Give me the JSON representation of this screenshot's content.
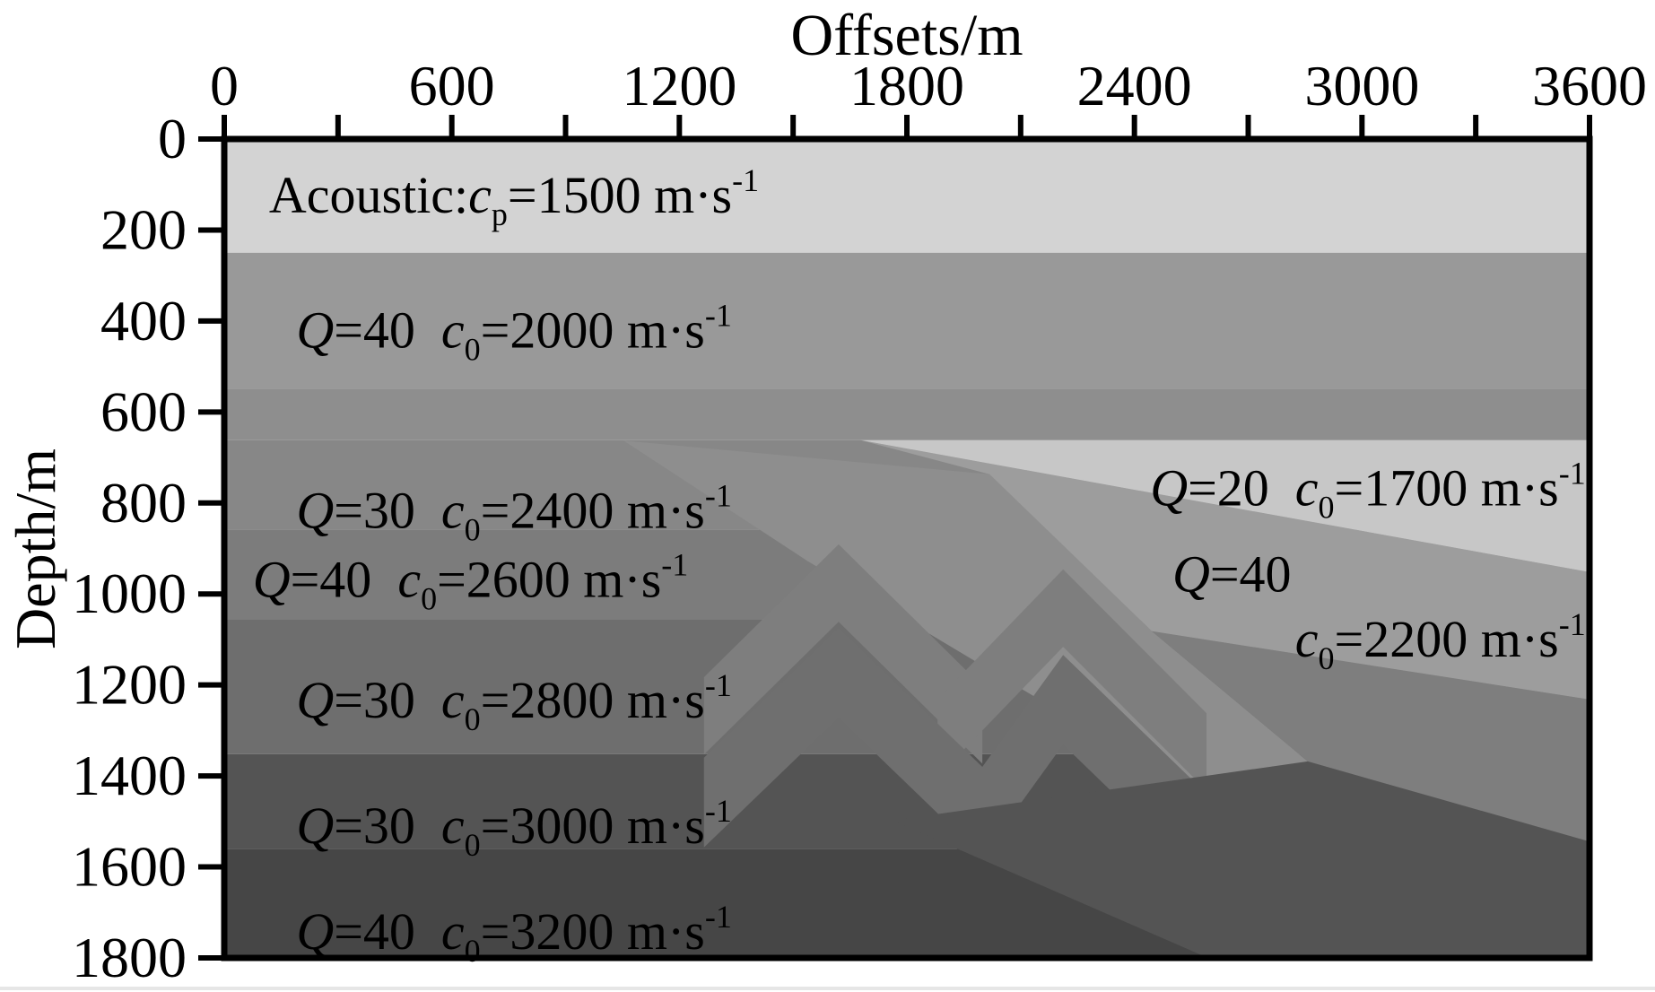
{
  "figure": {
    "title": "Offsets/m",
    "y_axis_title": "Depth/m"
  },
  "chart_data": {
    "type": "area",
    "title": "Offsets/m",
    "xlabel": "Offsets/m",
    "ylabel": "Depth/m",
    "x_range_m": [
      0,
      3600
    ],
    "depth_range_m": [
      0,
      1800
    ],
    "grid": false,
    "legend": "none",
    "x_major_ticks": [
      0,
      600,
      1200,
      1800,
      2400,
      3000,
      3600
    ],
    "x_minor_ticks": [
      300,
      900,
      1500,
      2100,
      2700,
      3300
    ],
    "y_ticks": [
      0,
      200,
      400,
      600,
      800,
      1000,
      1200,
      1400,
      1600,
      1800
    ],
    "layers_summary": [
      {
        "name": "Acoustic",
        "Q": null,
        "velocity": "cp=1500 m/s",
        "approx_depth_top_m": 0,
        "color": "#d3d3d3"
      },
      {
        "name": "Q=40 c0=2000",
        "Q": 40,
        "velocity": "c0=2000 m/s",
        "approx_depth_top_m": 250,
        "color": "#999999"
      },
      {
        "name": "transition band",
        "Q": null,
        "velocity": null,
        "approx_depth_top_m": 550,
        "color": "#8e8e8e"
      },
      {
        "name": "Q=30 c0=2400",
        "Q": 30,
        "velocity": "c0=2400 m/s",
        "approx_depth_top_m": 662,
        "color": "#878787"
      },
      {
        "name": "Q=40 c0=2600",
        "Q": 40,
        "velocity": "c0=2600 m/s",
        "approx_depth_top_m": 858,
        "color": "#7c7c7c"
      },
      {
        "name": "Q=30 c0=2800",
        "Q": 30,
        "velocity": "c0=2800 m/s",
        "approx_depth_top_m": 1055,
        "color": "#6e6e6e"
      },
      {
        "name": "Q=30 c0=3000",
        "Q": 30,
        "velocity": "c0=3000 m/s",
        "approx_depth_top_m": 1352,
        "color": "#545454"
      },
      {
        "name": "Q=40 c0=3200",
        "Q": 40,
        "velocity": "c0=3200 m/s",
        "approx_depth_top_m": 1560,
        "color": "#464646"
      },
      {
        "name": "Q=20 c0=1700 wedge",
        "Q": 20,
        "velocity": "c0=1700 m/s",
        "approx_depth_top_m": 662,
        "color": "#c7c7c7"
      },
      {
        "name": "Q=40 c0=2200 region",
        "Q": 40,
        "velocity": "c0=2200 m/s",
        "approx_depth_top_m": 700,
        "color": "#9d9d9d"
      }
    ],
    "regions": [
      {
        "id": "layer-acoustic",
        "color": "#d3d3d3",
        "depth": [
          0,
          250
        ]
      },
      {
        "id": "layer-2000",
        "color": "#999999",
        "depth": [
          250,
          550
        ]
      },
      {
        "id": "transition-band",
        "color": "#8e8e8e",
        "depth": [
          550,
          662
        ]
      },
      {
        "id": "layer-2400",
        "color": "#878787",
        "depth": [
          662,
          858
        ]
      },
      {
        "id": "layer-2600",
        "color": "#7c7c7c",
        "depth": [
          858,
          1055
        ]
      },
      {
        "id": "layer-2800",
        "color": "#6e6e6e",
        "depth": [
          1055,
          1352
        ]
      },
      {
        "id": "layer-3000",
        "color": "#545454",
        "depth": [
          1352,
          1560
        ]
      },
      {
        "id": "layer-3200",
        "color": "#464646",
        "depth": [
          1560,
          1800
        ]
      },
      {
        "id": "thrust-sheet-upper",
        "color": "#8e8e8e",
        "poly": [
          [
            1053,
            663
          ],
          [
            2018,
            737
          ],
          [
            2446,
            1082
          ],
          [
            2857,
            1368
          ],
          [
            2720,
            1518
          ],
          [
            2129,
            1222
          ],
          [
            1537,
            927
          ]
        ]
      },
      {
        "id": "thrust-chevron-1",
        "color": "#7e7e7e",
        "poly": [
          [
            1265,
            1183
          ],
          [
            1620,
            891
          ],
          [
            1999,
            1203
          ],
          [
            1999,
            1373
          ],
          [
            1620,
            1061
          ],
          [
            1265,
            1353
          ]
        ]
      },
      {
        "id": "thrust-chevron-2",
        "color": "#7e7e7e",
        "poly": [
          [
            1881,
            1232
          ],
          [
            2212,
            946
          ],
          [
            2590,
            1262
          ],
          [
            2590,
            1432
          ],
          [
            2212,
            1116
          ],
          [
            1881,
            1402
          ]
        ]
      },
      {
        "id": "thrust-chevron-lower",
        "color": "#6f6f6f",
        "poly": [
          [
            1265,
            1360
          ],
          [
            1620,
            1074
          ],
          [
            1999,
            1380
          ],
          [
            2212,
            1134
          ],
          [
            2590,
            1439
          ],
          [
            2590,
            1636
          ],
          [
            2212,
            1331
          ],
          [
            1999,
            1577
          ],
          [
            1620,
            1272
          ],
          [
            1265,
            1557
          ]
        ]
      },
      {
        "id": "deep-right-3000",
        "color": "#545454",
        "poly": [
          [
            1762,
            1498
          ],
          [
            2857,
            1368
          ],
          [
            3600,
            1544
          ],
          [
            3600,
            1800
          ],
          [
            2594,
            1800
          ]
        ]
      },
      {
        "id": "mid-right-band",
        "color": "#7e7e7e",
        "poly": [
          [
            2446,
            1082
          ],
          [
            3600,
            1232
          ],
          [
            3600,
            1544
          ],
          [
            2857,
            1368
          ]
        ]
      },
      {
        "id": "region-2200",
        "color": "#9d9d9d",
        "poly": [
          [
            1678,
            662
          ],
          [
            3600,
            952
          ],
          [
            3600,
            1232
          ],
          [
            2446,
            1082
          ],
          [
            2018,
            737
          ]
        ]
      },
      {
        "id": "wedge-1700",
        "color": "#c7c7c7",
        "poly": [
          [
            1678,
            662
          ],
          [
            3600,
            662
          ],
          [
            3600,
            952
          ]
        ]
      }
    ],
    "labels": [
      {
        "id": "label-acoustic",
        "o": 118,
        "d": 162,
        "anchor": "start",
        "parts": [
          {
            "t": "Acoustic:"
          },
          {
            "t": "c",
            "i": true
          },
          {
            "t": "p",
            "sub": true
          },
          {
            "t": "=1500 m·s"
          },
          {
            "t": "-1",
            "sup": true
          }
        ]
      },
      {
        "id": "label-2000",
        "o": 190,
        "d": 458,
        "anchor": "start",
        "parts": [
          {
            "t": "Q",
            "i": true
          },
          {
            "t": "=40  "
          },
          {
            "t": "c",
            "i": true
          },
          {
            "t": "0",
            "sub": true
          },
          {
            "t": "=2000 m·s"
          },
          {
            "t": "-1",
            "sup": true
          }
        ]
      },
      {
        "id": "label-2400",
        "o": 190,
        "d": 855,
        "anchor": "start",
        "parts": [
          {
            "t": "Q",
            "i": true
          },
          {
            "t": "=30  "
          },
          {
            "t": "c",
            "i": true
          },
          {
            "t": "0",
            "sub": true
          },
          {
            "t": "=2400 m·s"
          },
          {
            "t": "-1",
            "sup": true
          }
        ]
      },
      {
        "id": "label-2600",
        "o": 75,
        "d": 1006,
        "anchor": "start",
        "parts": [
          {
            "t": "Q",
            "i": true
          },
          {
            "t": "=40  "
          },
          {
            "t": "c",
            "i": true
          },
          {
            "t": "0",
            "sub": true
          },
          {
            "t": "=2600 m·s"
          },
          {
            "t": "-1",
            "sup": true
          }
        ]
      },
      {
        "id": "label-2800",
        "o": 190,
        "d": 1272,
        "anchor": "start",
        "parts": [
          {
            "t": "Q",
            "i": true
          },
          {
            "t": "=30  "
          },
          {
            "t": "c",
            "i": true
          },
          {
            "t": "0",
            "sub": true
          },
          {
            "t": "=2800 m·s"
          },
          {
            "t": "-1",
            "sup": true
          }
        ]
      },
      {
        "id": "label-3000",
        "o": 190,
        "d": 1548,
        "anchor": "start",
        "parts": [
          {
            "t": "Q",
            "i": true
          },
          {
            "t": "=30  "
          },
          {
            "t": "c",
            "i": true
          },
          {
            "t": "0",
            "sub": true
          },
          {
            "t": "=3000 m·s"
          },
          {
            "t": "-1",
            "sup": true
          }
        ]
      },
      {
        "id": "label-3200",
        "o": 190,
        "d": 1780,
        "anchor": "start",
        "parts": [
          {
            "t": "Q",
            "i": true
          },
          {
            "t": "=40  "
          },
          {
            "t": "c",
            "i": true
          },
          {
            "t": "0",
            "sub": true
          },
          {
            "t": "=3200 m·s"
          },
          {
            "t": "-1",
            "sup": true
          }
        ]
      },
      {
        "id": "label-1700",
        "o": 3590,
        "d": 805,
        "anchor": "end",
        "parts": [
          {
            "t": "Q",
            "i": true
          },
          {
            "t": "=20  "
          },
          {
            "t": "c",
            "i": true
          },
          {
            "t": "0",
            "sub": true
          },
          {
            "t": "=1700 m·s"
          },
          {
            "t": "-1",
            "sup": true
          }
        ]
      },
      {
        "id": "label-q40-right",
        "o": 2500,
        "d": 995,
        "anchor": "start",
        "parts": [
          {
            "t": "Q",
            "i": true
          },
          {
            "t": "=40"
          }
        ]
      },
      {
        "id": "label-2200",
        "o": 3590,
        "d": 1138,
        "anchor": "end",
        "parts": [
          {
            "t": "c",
            "i": true
          },
          {
            "t": "0",
            "sub": true
          },
          {
            "t": "=2200 m·s"
          },
          {
            "t": "-1",
            "sup": true
          }
        ]
      }
    ],
    "style": {
      "frame_color": "#000000",
      "tick_color": "#000000",
      "text_color": "#000000"
    }
  }
}
